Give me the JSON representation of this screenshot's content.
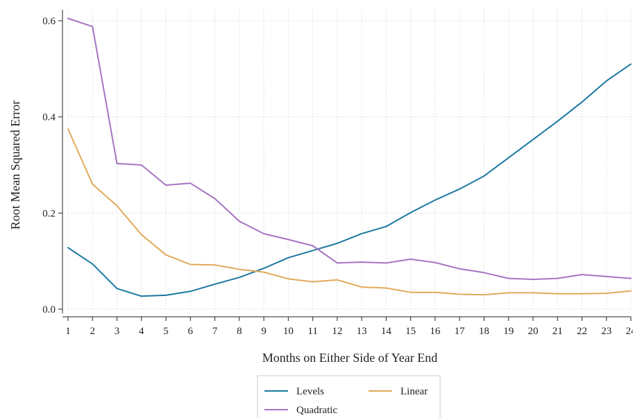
{
  "chart_data": {
    "type": "line",
    "xlabel": "Months on Either Side of Year End",
    "ylabel": "Root Mean Squared Error",
    "x": [
      1,
      2,
      3,
      4,
      5,
      6,
      7,
      8,
      9,
      10,
      11,
      12,
      13,
      14,
      15,
      16,
      17,
      18,
      19,
      20,
      21,
      22,
      23,
      24
    ],
    "x_ticks": [
      "1",
      "2",
      "3",
      "4",
      "5",
      "6",
      "7",
      "8",
      "9",
      "10",
      "11",
      "12",
      "13",
      "14",
      "15",
      "16",
      "17",
      "18",
      "19",
      "20",
      "21",
      "22",
      "23",
      "24"
    ],
    "y_ticks": [
      {
        "value": 0.0,
        "label": "0.0"
      },
      {
        "value": 0.2,
        "label": "0.2"
      },
      {
        "value": 0.4,
        "label": "0.4"
      },
      {
        "value": 0.6,
        "label": "0.6"
      }
    ],
    "ylim": [
      0.0,
      0.6
    ],
    "xlim": [
      1,
      24
    ],
    "grid": true,
    "legend_position": "bottom",
    "series": [
      {
        "name": "Levels",
        "color": "#1a77a0",
        "values": [
          0.128,
          0.094,
          0.043,
          0.027,
          0.029,
          0.037,
          0.052,
          0.066,
          0.085,
          0.107,
          0.122,
          0.137,
          0.157,
          0.172,
          0.201,
          0.227,
          0.25,
          0.277,
          0.315,
          0.353,
          0.391,
          0.431,
          0.475,
          0.51
        ]
      },
      {
        "name": "Linear",
        "color": "#e0a95a",
        "values": [
          0.375,
          0.26,
          0.215,
          0.155,
          0.113,
          0.093,
          0.092,
          0.083,
          0.077,
          0.063,
          0.057,
          0.061,
          0.046,
          0.044,
          0.035,
          0.035,
          0.031,
          0.03,
          0.034,
          0.034,
          0.032,
          0.032,
          0.033,
          0.038
        ]
      },
      {
        "name": "Quadratic",
        "color": "#a674c2",
        "values": [
          0.605,
          0.588,
          0.303,
          0.3,
          0.258,
          0.262,
          0.23,
          0.183,
          0.157,
          0.145,
          0.132,
          0.096,
          0.098,
          0.096,
          0.104,
          0.097,
          0.084,
          0.076,
          0.064,
          0.062,
          0.064,
          0.072,
          0.068,
          0.064
        ]
      }
    ]
  }
}
